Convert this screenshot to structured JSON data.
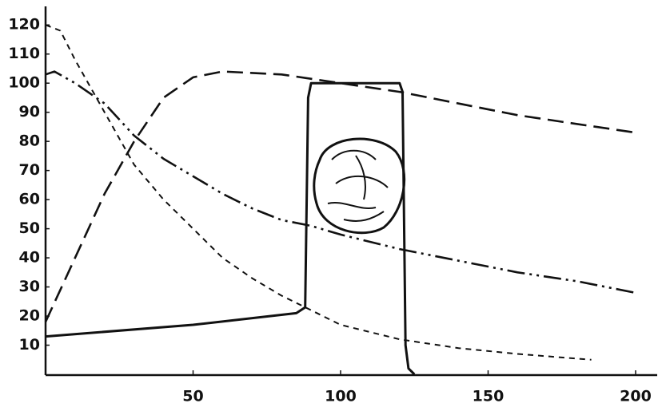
{
  "chart_data": {
    "type": "line",
    "xlim": [
      0,
      208
    ],
    "ylim": [
      0,
      125
    ],
    "xticks": [
      50,
      100,
      150,
      200
    ],
    "yticks": [
      10,
      20,
      30,
      40,
      50,
      60,
      70,
      80,
      90,
      100,
      110,
      120
    ],
    "series": [
      {
        "color": "#111111",
        "x": [
          0,
          5,
          10,
          20,
          30,
          40,
          50,
          60,
          70,
          80,
          90,
          100,
          120,
          140,
          160,
          185
        ],
        "values": [
          120,
          118,
          108,
          90,
          72,
          60,
          50,
          40,
          33,
          27,
          22,
          17,
          12,
          9,
          7,
          5
        ]
      },
      {
        "color": "#111111",
        "x": [
          0,
          10,
          20,
          30,
          40,
          50,
          60,
          80,
          100,
          120,
          140,
          160,
          180,
          200
        ],
        "values": [
          18,
          40,
          62,
          80,
          95,
          102,
          104,
          103,
          100,
          97,
          93,
          89,
          86,
          83
        ]
      },
      {
        "color": "#111111",
        "x": [
          0,
          3,
          10,
          20,
          30,
          40,
          50,
          60,
          70,
          80,
          90,
          100,
          120,
          140,
          160,
          180,
          200
        ],
        "values": [
          103,
          104,
          100,
          93,
          82,
          74,
          68,
          62,
          57,
          53,
          51,
          48,
          43,
          39,
          35,
          32,
          28
        ]
      },
      {
        "color": "#111111",
        "x": [
          0,
          50,
          85,
          88,
          89,
          90,
          120,
          121,
          122,
          123,
          125
        ],
        "values": [
          13,
          17,
          21,
          23,
          95,
          100,
          100,
          97,
          10,
          2,
          0
        ]
      }
    ]
  }
}
